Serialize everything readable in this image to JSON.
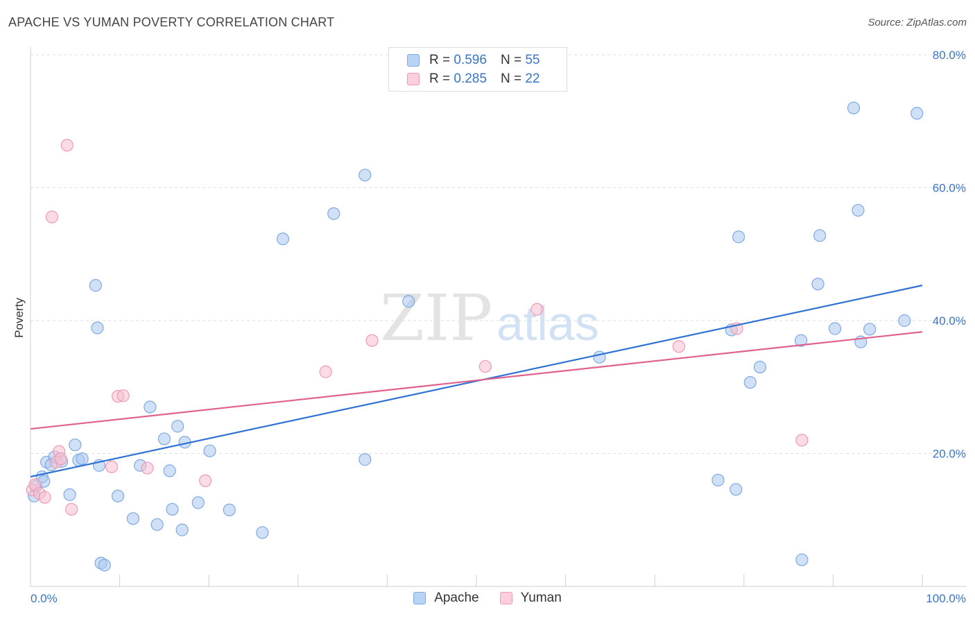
{
  "title": "APACHE VS YUMAN POVERTY CORRELATION CHART",
  "source": "Source: ZipAtlas.com",
  "watermark": {
    "zip": "ZIP",
    "atlas": "atlas"
  },
  "legend": {
    "apache": {
      "r_label": "R = ",
      "r": "0.596",
      "n_label": "N = ",
      "n": "55"
    },
    "yuman": {
      "r_label": "R = ",
      "r": "0.285",
      "n_label": "N = ",
      "n": "22"
    }
  },
  "colors": {
    "apache_fill": "#a9c8f0",
    "apache_stroke": "#7fa9e0",
    "apache_line": "#2f72d2",
    "yuman_fill": "#f7bfd0",
    "yuman_stroke": "#ee9ab5",
    "yuman_line": "#e0608e",
    "axis_label": "#3a74c8",
    "grid": "#dedede"
  },
  "chart_data": {
    "type": "scatter",
    "title": "APACHE VS YUMAN POVERTY CORRELATION CHART",
    "xlabel": "",
    "ylabel": "Poverty",
    "xlim": [
      0,
      100
    ],
    "ylim": [
      0,
      80
    ],
    "x_tick_labels": [
      "0.0%",
      "100.0%"
    ],
    "y_ticks": [
      20,
      40,
      60,
      80
    ],
    "y_tick_labels": [
      "20.0%",
      "40.0%",
      "60.0%",
      "80.0%"
    ],
    "series": [
      {
        "name": "Apache",
        "r": 0.596,
        "n": 55,
        "trend": {
          "x": [
            0,
            100
          ],
          "y": [
            16.5,
            45.3
          ]
        },
        "points": [
          [
            0.4,
            13.6
          ],
          [
            0.6,
            15.1
          ],
          [
            1.3,
            16.5
          ],
          [
            1.5,
            15.8
          ],
          [
            1.8,
            18.7
          ],
          [
            2.3,
            18.3
          ],
          [
            2.7,
            19.5
          ],
          [
            3.5,
            18.8
          ],
          [
            4.4,
            13.8
          ],
          [
            5.0,
            21.3
          ],
          [
            5.4,
            19.0
          ],
          [
            5.8,
            19.2
          ],
          [
            7.5,
            38.9
          ],
          [
            7.9,
            3.5
          ],
          [
            8.3,
            3.2
          ],
          [
            7.3,
            45.3
          ],
          [
            7.7,
            18.2
          ],
          [
            9.8,
            13.6
          ],
          [
            11.5,
            10.2
          ],
          [
            12.3,
            18.2
          ],
          [
            13.4,
            27.0
          ],
          [
            14.2,
            9.3
          ],
          [
            15.0,
            22.2
          ],
          [
            15.6,
            17.4
          ],
          [
            15.9,
            11.6
          ],
          [
            16.5,
            24.1
          ],
          [
            17.0,
            8.5
          ],
          [
            17.3,
            21.7
          ],
          [
            18.8,
            12.6
          ],
          [
            20.1,
            20.4
          ],
          [
            22.3,
            11.5
          ],
          [
            26.0,
            8.1
          ],
          [
            28.3,
            52.3
          ],
          [
            34.0,
            56.1
          ],
          [
            37.5,
            61.9
          ],
          [
            37.5,
            19.1
          ],
          [
            42.4,
            42.9
          ],
          [
            63.8,
            34.5
          ],
          [
            77.1,
            16.0
          ],
          [
            79.1,
            14.6
          ],
          [
            78.6,
            38.6
          ],
          [
            79.4,
            52.6
          ],
          [
            80.7,
            30.7
          ],
          [
            81.8,
            33.0
          ],
          [
            86.4,
            37.0
          ],
          [
            86.5,
            4.0
          ],
          [
            88.3,
            45.5
          ],
          [
            88.5,
            52.8
          ],
          [
            90.2,
            38.8
          ],
          [
            92.3,
            72.0
          ],
          [
            92.8,
            56.6
          ],
          [
            93.1,
            36.8
          ],
          [
            94.1,
            38.7
          ],
          [
            98.0,
            40.0
          ],
          [
            99.4,
            71.2
          ]
        ]
      },
      {
        "name": "Yuman",
        "r": 0.285,
        "n": 22,
        "trend": {
          "x": [
            0,
            100
          ],
          "y": [
            23.7,
            38.3
          ]
        },
        "points": [
          [
            0.2,
            14.5
          ],
          [
            0.5,
            15.3
          ],
          [
            1.0,
            14.0
          ],
          [
            1.6,
            13.4
          ],
          [
            2.4,
            55.6
          ],
          [
            2.9,
            18.7
          ],
          [
            3.2,
            20.3
          ],
          [
            3.4,
            19.2
          ],
          [
            4.1,
            66.4
          ],
          [
            4.6,
            11.6
          ],
          [
            9.1,
            18.0
          ],
          [
            9.8,
            28.6
          ],
          [
            10.4,
            28.7
          ],
          [
            13.1,
            17.8
          ],
          [
            19.6,
            15.9
          ],
          [
            33.1,
            32.3
          ],
          [
            38.3,
            37.0
          ],
          [
            51.0,
            33.1
          ],
          [
            56.8,
            41.7
          ],
          [
            72.7,
            36.1
          ],
          [
            79.2,
            38.8
          ],
          [
            86.5,
            22.0
          ]
        ]
      }
    ]
  }
}
